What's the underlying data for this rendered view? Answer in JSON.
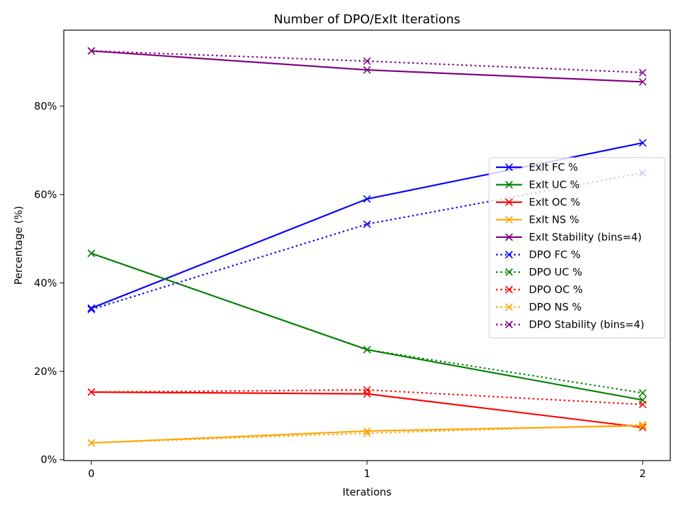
{
  "chart_data": {
    "type": "line",
    "title": "Number of DPO/ExIt Iterations",
    "xlabel": "Iterations",
    "ylabel": "Percentage (%)",
    "x": [
      0,
      1,
      2
    ],
    "xticks": [
      0,
      1,
      2
    ],
    "xlim": [
      -0.1,
      2.1
    ],
    "ylim": [
      -0.2,
      97.2
    ],
    "yticks": [
      0,
      20,
      40,
      60,
      80
    ],
    "ytick_suffix": "%",
    "grid": false,
    "legend_position": "center-right",
    "series": [
      {
        "name": "ExIt FC %",
        "values": [
          34.3,
          59.0,
          71.7
        ],
        "color": "#0000ff",
        "style": "solid",
        "marker": "x"
      },
      {
        "name": "ExIt UC %",
        "values": [
          46.7,
          24.9,
          13.5
        ],
        "color": "#008000",
        "style": "solid",
        "marker": "x"
      },
      {
        "name": "ExIt OC %",
        "values": [
          15.3,
          14.9,
          7.3
        ],
        "color": "#ff0000",
        "style": "solid",
        "marker": "x"
      },
      {
        "name": "ExIt NS %",
        "values": [
          3.8,
          6.5,
          7.7
        ],
        "color": "#ffa500",
        "style": "solid",
        "marker": "x"
      },
      {
        "name": "ExIt Stability (bins=4)",
        "values": [
          92.5,
          88.2,
          85.5
        ],
        "color": "#800080",
        "style": "solid",
        "marker": "x"
      },
      {
        "name": "DPO FC %",
        "values": [
          34.0,
          53.3,
          64.9
        ],
        "color": "#0000ff",
        "style": "dotted",
        "marker": "x"
      },
      {
        "name": "DPO UC %",
        "values": [
          46.7,
          24.9,
          15.1
        ],
        "color": "#008000",
        "style": "dotted",
        "marker": "x"
      },
      {
        "name": "DPO OC %",
        "values": [
          15.3,
          15.8,
          12.5
        ],
        "color": "#ff0000",
        "style": "dotted",
        "marker": "x"
      },
      {
        "name": "DPO NS %",
        "values": [
          3.8,
          6.0,
          7.9
        ],
        "color": "#ffa500",
        "style": "dotted",
        "marker": "x"
      },
      {
        "name": "DPO Stability (bins=4)",
        "values": [
          92.5,
          90.2,
          87.6
        ],
        "color": "#800080",
        "style": "dotted",
        "marker": "x"
      }
    ]
  }
}
